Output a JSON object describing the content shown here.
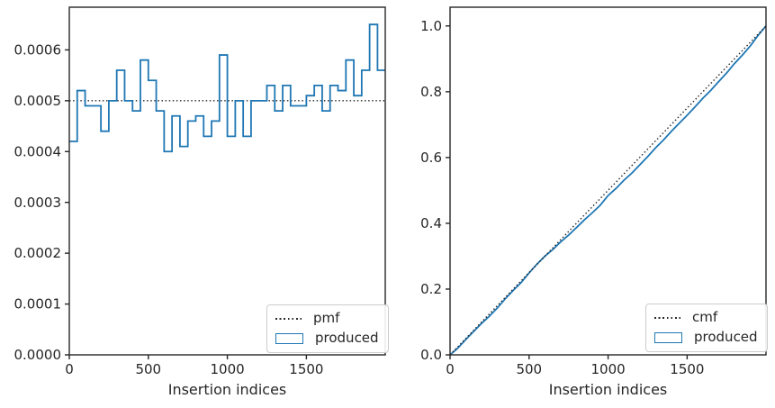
{
  "figure": {
    "background": "#ffffff",
    "colors": {
      "produced_blue": "#1f77b4",
      "reference_black": "#262626",
      "spine": "#262626",
      "text": "#262626",
      "legend_border": "#cccccc",
      "legend_bg": "#ffffff"
    }
  },
  "chart_data": [
    {
      "type": "line",
      "subplot": "left",
      "title": "",
      "xlabel": "Insertion indices",
      "ylabel": "",
      "xlim": [
        0,
        1999
      ],
      "ylim": [
        0,
        0.000684
      ],
      "grid": false,
      "xticks": {
        "values": [
          0,
          500,
          1000,
          1500
        ],
        "labels": [
          "0",
          "500",
          "1000",
          "1500"
        ]
      },
      "yticks": {
        "values": [
          0.0,
          0.0001,
          0.0002,
          0.0003,
          0.0004,
          0.0005,
          0.0006
        ],
        "labels": [
          "0.0000",
          "0.0001",
          "0.0002",
          "0.0003",
          "0.0004",
          "0.0005",
          "0.0006"
        ]
      },
      "legend": {
        "position": "lower right",
        "entries": [
          {
            "label": "pmf",
            "style": "dotted"
          },
          {
            "label": "produced",
            "style": "step-outline"
          }
        ]
      },
      "series": [
        {
          "name": "pmf",
          "kind": "hline",
          "style": "dotted",
          "color": "#262626",
          "y": 0.0005
        },
        {
          "name": "produced",
          "kind": "step-histogram",
          "style": "solid",
          "color": "#1f77b4",
          "bin_start": 0,
          "bin_width": 50,
          "values": [
            0.00042,
            0.00052,
            0.00049,
            0.00049,
            0.00044,
            0.0005,
            0.00056,
            0.0005,
            0.00048,
            0.00058,
            0.00054,
            0.00048,
            0.0004,
            0.00047,
            0.00041,
            0.00046,
            0.00047,
            0.00043,
            0.00046,
            0.00059,
            0.00043,
            0.0005,
            0.00043,
            0.0005,
            0.0005,
            0.00053,
            0.00048,
            0.00053,
            0.00049,
            0.00049,
            0.00051,
            0.00053,
            0.00048,
            0.00053,
            0.00052,
            0.00058,
            0.00051,
            0.00056,
            0.00065,
            0.00056
          ]
        }
      ]
    },
    {
      "type": "line",
      "subplot": "right",
      "title": "",
      "xlabel": "Insertion indices",
      "ylabel": "",
      "xlim": [
        0,
        1999
      ],
      "ylim": [
        0,
        1.057
      ],
      "grid": false,
      "xticks": {
        "values": [
          0,
          500,
          1000,
          1500
        ],
        "labels": [
          "0",
          "500",
          "1000",
          "1500"
        ]
      },
      "yticks": {
        "values": [
          0.0,
          0.2,
          0.4,
          0.6,
          0.8,
          1.0
        ],
        "labels": [
          "0.0",
          "0.2",
          "0.4",
          "0.6",
          "0.8",
          "1.0"
        ]
      },
      "legend": {
        "position": "lower right",
        "entries": [
          {
            "label": "cmf",
            "style": "dotted"
          },
          {
            "label": "produced",
            "style": "step-outline"
          }
        ]
      },
      "series": [
        {
          "name": "produced",
          "kind": "line",
          "style": "solid",
          "color": "#1f77b4",
          "x": [
            0,
            50,
            100,
            150,
            200,
            250,
            300,
            350,
            400,
            450,
            500,
            550,
            600,
            650,
            700,
            750,
            800,
            850,
            900,
            950,
            1000,
            1050,
            1100,
            1150,
            1200,
            1250,
            1300,
            1350,
            1400,
            1450,
            1500,
            1550,
            1600,
            1650,
            1700,
            1750,
            1800,
            1850,
            1900,
            1950,
            1999
          ],
          "y": [
            0,
            0.021,
            0.047,
            0.0715,
            0.096,
            0.118,
            0.143,
            0.171,
            0.196,
            0.22,
            0.249,
            0.276,
            0.3,
            0.32,
            0.3435,
            0.364,
            0.387,
            0.4105,
            0.432,
            0.455,
            0.4845,
            0.506,
            0.531,
            0.5525,
            0.5775,
            0.6025,
            0.629,
            0.653,
            0.6795,
            0.704,
            0.7285,
            0.754,
            0.7805,
            0.8045,
            0.831,
            0.857,
            0.886,
            0.9115,
            0.9395,
            0.972,
            1.0
          ]
        },
        {
          "name": "cmf",
          "kind": "line",
          "style": "dotted",
          "color": "#262626",
          "x": [
            0,
            1999
          ],
          "y": [
            0,
            1.0
          ]
        }
      ]
    }
  ]
}
